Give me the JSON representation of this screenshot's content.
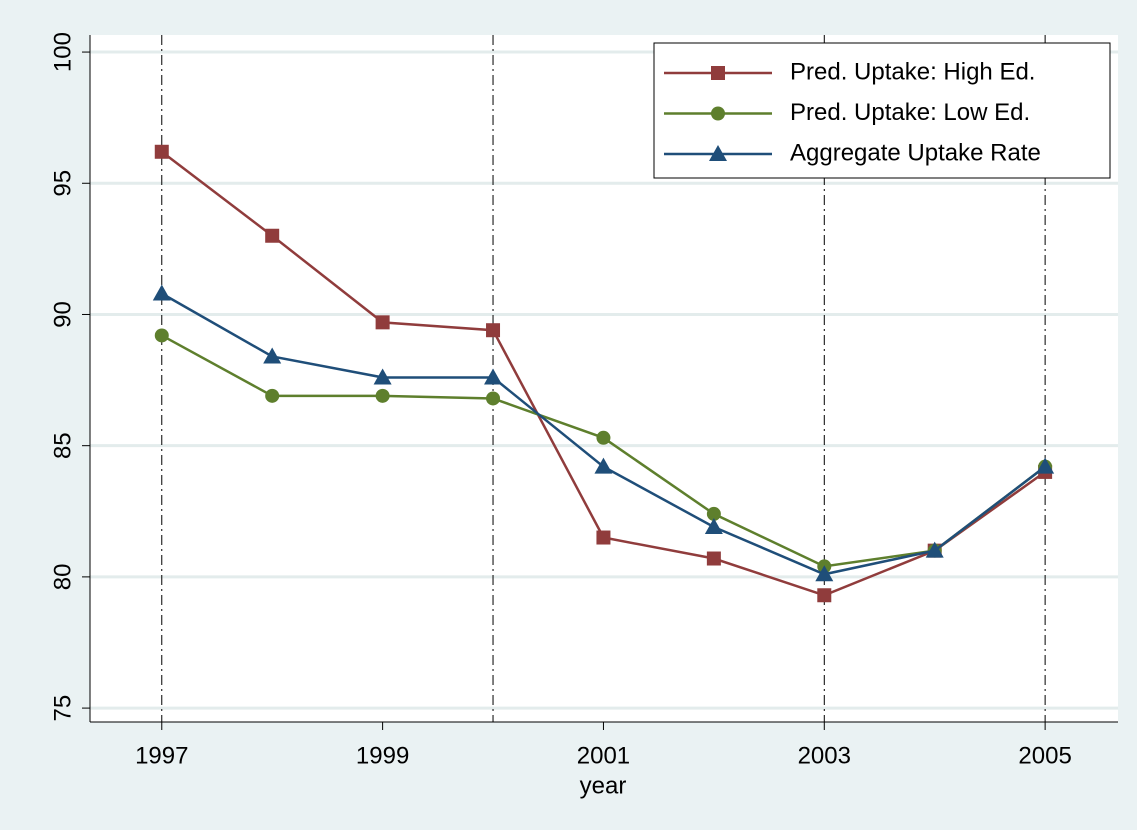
{
  "chart_data": {
    "type": "line",
    "xlabel": "year",
    "x": [
      1997,
      1998,
      1999,
      2000,
      2001,
      2002,
      2003,
      2004,
      2005
    ],
    "series": [
      {
        "name": "Pred. Uptake: High Ed.",
        "color": "#903c3c",
        "marker": "square",
        "values": [
          96.2,
          93.0,
          89.7,
          89.4,
          81.5,
          80.7,
          79.3,
          81.0,
          84.0
        ]
      },
      {
        "name": "Pred. Uptake: Low Ed.",
        "color": "#5e7f2d",
        "marker": "circle",
        "values": [
          89.2,
          86.9,
          86.9,
          86.8,
          85.3,
          82.4,
          80.4,
          81.0,
          84.2
        ]
      },
      {
        "name": "Aggregate Uptake Rate",
        "color": "#1f4e79",
        "marker": "triangle",
        "values": [
          90.8,
          88.4,
          87.6,
          87.6,
          84.2,
          81.9,
          80.1,
          81.0,
          84.2
        ]
      }
    ],
    "xlim": [
      1996.35,
      2005.66
    ],
    "xticks": [
      1997,
      1999,
      2001,
      2003,
      2005
    ],
    "ylim": [
      74.47,
      100.65
    ],
    "yticks": [
      75,
      80,
      85,
      90,
      95,
      100
    ],
    "vlines": [
      1997,
      2000,
      2003,
      2005
    ],
    "grid": true,
    "legend": "top-right"
  }
}
